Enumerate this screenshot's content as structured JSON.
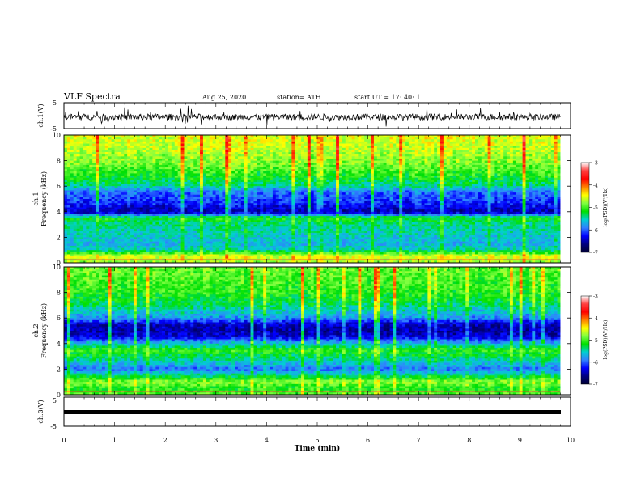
{
  "header": {
    "title": "VLF Spectra",
    "date": "Aug.25, 2020",
    "station": "station= ATH",
    "start": "start  UT =   17: 40: 1"
  },
  "colorbar": {
    "label": "log(PSD)(V²/Hz)",
    "ticks": [
      "-3",
      "-4",
      "-5",
      "-6",
      "-7"
    ],
    "colors": [
      "#ffffff",
      "#ff4040",
      "#ff0000",
      "#ff8000",
      "#ffff00",
      "#80ff40",
      "#00e000",
      "#00d0d0",
      "#3080ff",
      "#0000ff",
      "#000080",
      "#000030"
    ]
  },
  "chart_data": [
    {
      "type": "line",
      "panel": "ch1-waveform",
      "ylabel": "ch.1(V)",
      "yticks": [
        "5",
        "-5"
      ],
      "ylim": [
        -5,
        5
      ],
      "xlim": [
        0,
        9.8
      ],
      "note_values": "noisy waveform centered near -0.5 V, typical amplitude about ±1.5 V with spikes to about ±4 V"
    },
    {
      "type": "heatmap",
      "panel": "ch1-spectrogram",
      "ylabel": "ch.1",
      "ylabel2": "Frequency (kHz)",
      "yticks": [
        "0",
        "2",
        "4",
        "6",
        "8",
        "10"
      ],
      "ylim": [
        0,
        10
      ],
      "xlim": [
        0,
        9.8
      ],
      "zlim": [
        -7,
        -3
      ],
      "profile": [
        {
          "f": 0.0,
          "z": -4.6
        },
        {
          "f": 0.5,
          "z": -4.3
        },
        {
          "f": 1.0,
          "z": -5.4
        },
        {
          "f": 1.5,
          "z": -5.6
        },
        {
          "f": 2.0,
          "z": -5.5
        },
        {
          "f": 2.5,
          "z": -5.4
        },
        {
          "f": 3.0,
          "z": -5.3
        },
        {
          "f": 3.5,
          "z": -5.0
        },
        {
          "f": 4.0,
          "z": -6.6
        },
        {
          "f": 4.5,
          "z": -6.3
        },
        {
          "f": 5.0,
          "z": -6.1
        },
        {
          "f": 5.5,
          "z": -6.0
        },
        {
          "f": 6.0,
          "z": -5.4
        },
        {
          "f": 7.0,
          "z": -5.0
        },
        {
          "f": 8.0,
          "z": -4.7
        },
        {
          "f": 9.0,
          "z": -4.5
        },
        {
          "f": 10.0,
          "z": -4.4
        }
      ]
    },
    {
      "type": "heatmap",
      "panel": "ch2-spectrogram",
      "ylabel": "ch.2",
      "ylabel2": "Frequency (kHz)",
      "yticks": [
        "0",
        "2",
        "4",
        "6",
        "8",
        "10"
      ],
      "ylim": [
        0,
        10
      ],
      "xlim": [
        0,
        9.8
      ],
      "zlim": [
        -7,
        -3
      ],
      "profile": [
        {
          "f": 0.0,
          "z": -4.8
        },
        {
          "f": 0.5,
          "z": -5.0
        },
        {
          "f": 1.0,
          "z": -4.6
        },
        {
          "f": 1.5,
          "z": -5.3
        },
        {
          "f": 2.0,
          "z": -5.9
        },
        {
          "f": 2.5,
          "z": -5.5
        },
        {
          "f": 3.0,
          "z": -5.2
        },
        {
          "f": 3.5,
          "z": -4.9
        },
        {
          "f": 4.0,
          "z": -5.6
        },
        {
          "f": 4.5,
          "z": -6.4
        },
        {
          "f": 5.0,
          "z": -6.6
        },
        {
          "f": 5.5,
          "z": -6.5
        },
        {
          "f": 6.0,
          "z": -5.8
        },
        {
          "f": 7.0,
          "z": -5.3
        },
        {
          "f": 8.0,
          "z": -5.0
        },
        {
          "f": 9.0,
          "z": -4.9
        },
        {
          "f": 10.0,
          "z": -4.8
        }
      ]
    },
    {
      "type": "line",
      "panel": "ch3-waveform",
      "ylabel": "ch.3(V)",
      "yticks": [
        "5",
        "-5"
      ],
      "ylim": [
        -5,
        5
      ],
      "xlim": [
        0,
        9.8
      ],
      "note_values": "nearly flat trace at about 0 V"
    }
  ],
  "xaxis": {
    "label": "Time (min)",
    "ticks": [
      "0",
      "1",
      "2",
      "3",
      "4",
      "5",
      "6",
      "7",
      "8",
      "9",
      "10"
    ],
    "range": [
      0,
      10
    ]
  }
}
